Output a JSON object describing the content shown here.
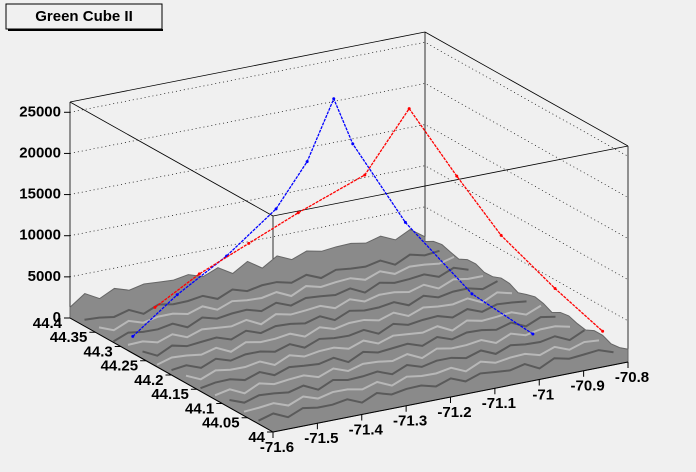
{
  "chart_data": {
    "type": "line3d",
    "title": "Green Cube II",
    "xlim": [
      -71.6,
      -70.8
    ],
    "xticks": [
      -71.6,
      -71.5,
      -71.4,
      -71.3,
      -71.2,
      -71.1,
      -71,
      -70.9,
      -70.8
    ],
    "ylim": [
      44,
      44.4
    ],
    "yticks": [
      44,
      44.05,
      44.1,
      44.15,
      44.2,
      44.25,
      44.3,
      44.35,
      44.4
    ],
    "zlim": [
      0,
      26250
    ],
    "zticks": [
      0,
      5000,
      10000,
      15000,
      20000,
      25000
    ],
    "grid": true,
    "series": [
      {
        "color": "#0000ff",
        "x": [
          -71.55,
          -71.45,
          -71.35,
          -71.25,
          -71.18,
          -71.12,
          -71.1,
          -71.05,
          -70.98,
          -70.9
        ],
        "y": [
          44.32,
          44.32,
          44.31,
          44.3,
          44.3,
          44.3,
          44.28,
          44.22,
          44.15,
          44.1
        ],
        "z": [
          0,
          4000,
          8000,
          13000,
          18000,
          25000,
          20000,
          12000,
          5000,
          1000
        ]
      },
      {
        "color": "#ff0000",
        "x": [
          -71.5,
          -71.4,
          -71.3,
          -71.2,
          -71.05,
          -70.95,
          -70.9,
          -70.88,
          -70.85,
          -70.8
        ],
        "y": [
          44.32,
          44.32,
          44.31,
          44.3,
          44.3,
          44.3,
          44.25,
          44.18,
          44.1,
          44.05
        ],
        "z": [
          3000,
          6000,
          9000,
          12000,
          15000,
          22000,
          15000,
          10000,
          6000,
          2000
        ]
      }
    ]
  }
}
